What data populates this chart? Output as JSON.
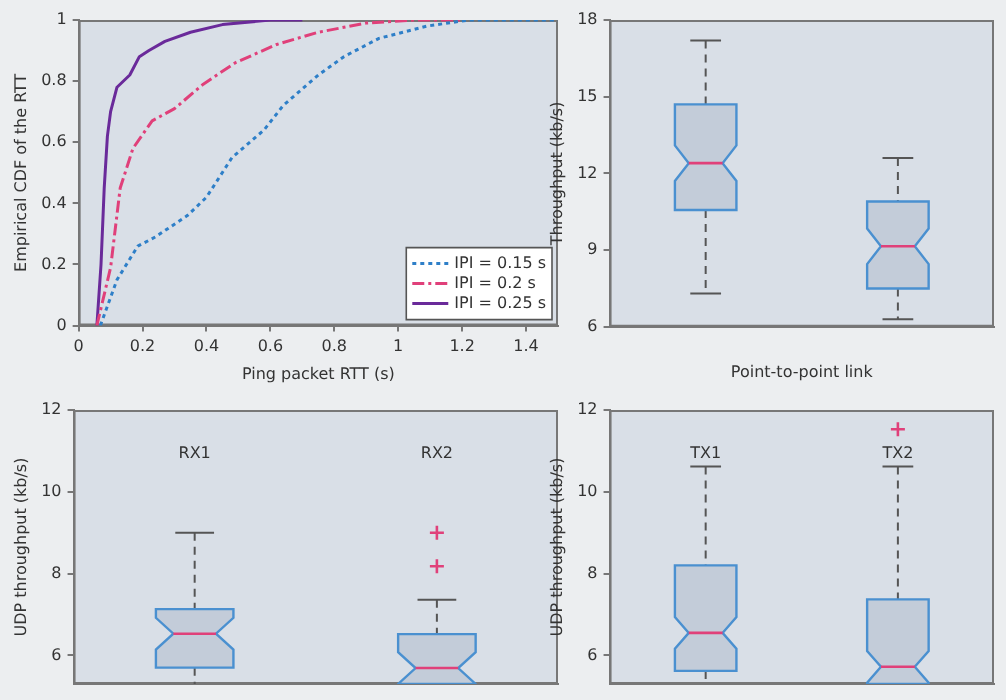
{
  "chart_data": [
    {
      "type": "line",
      "xlabel": "Ping packet RTT (s)",
      "ylabel": "Empirical CDF of the RTT",
      "xlim": [
        0,
        1.5
      ],
      "xticks": [
        0,
        0.2,
        0.4,
        0.6,
        0.8,
        1,
        1.2,
        1.4
      ],
      "ylim": [
        0,
        1
      ],
      "yticks": [
        0,
        0.2,
        0.4,
        0.6,
        0.8,
        1
      ],
      "grid": false,
      "legend": "bottom right",
      "marker": "none",
      "series": [
        {
          "name": "IPI = 0.15 s",
          "color": "#2e7fc8",
          "line_style": "dotted",
          "x": [
            0.068,
            0.12,
            0.185,
            0.24,
            0.34,
            0.4,
            0.48,
            0.58,
            0.64,
            0.75,
            0.83,
            0.94,
            1.09,
            1.22,
            1.5
          ],
          "values": [
            0,
            0.15,
            0.26,
            0.29,
            0.36,
            0.42,
            0.55,
            0.64,
            0.72,
            0.82,
            0.88,
            0.94,
            0.98,
            1,
            1
          ]
        },
        {
          "name": "IPI = 0.2 s",
          "color": "#e0407a",
          "line_style": "dashed",
          "x": [
            0.057,
            0.1,
            0.13,
            0.17,
            0.23,
            0.3,
            0.39,
            0.49,
            0.62,
            0.75,
            0.9,
            1.05,
            1.2
          ],
          "values": [
            0,
            0.19,
            0.45,
            0.58,
            0.67,
            0.71,
            0.79,
            0.86,
            0.92,
            0.96,
            0.99,
            1,
            1
          ]
        },
        {
          "name": "IPI = 0.25 s",
          "color": "#6a2a9a",
          "line_style": "solid",
          "x": [
            0.057,
            0.07,
            0.08,
            0.09,
            0.1,
            0.12,
            0.16,
            0.19,
            0.22,
            0.27,
            0.35,
            0.45,
            0.6,
            0.7
          ],
          "values": [
            0,
            0.2,
            0.45,
            0.62,
            0.7,
            0.78,
            0.82,
            0.88,
            0.9,
            0.93,
            0.96,
            0.985,
            1,
            1
          ]
        }
      ]
    },
    {
      "type": "box",
      "xlabel": "Point-to-point link",
      "ylabel": "Throughput (kb/s)",
      "categories": [
        null,
        null
      ],
      "ylim": [
        6,
        18
      ],
      "yticks": [
        6,
        9,
        12,
        15,
        18
      ],
      "grid": false,
      "tick_labels": "y",
      "color": "#4a90d0",
      "boxes": [
        {
          "low": 7.3,
          "q1": 10.57,
          "median": 12.4,
          "q3": 14.7,
          "high": 17.2
        },
        {
          "low": 6.3,
          "q1": 7.5,
          "median": 9.15,
          "q3": 10.9,
          "high": 12.6
        }
      ]
    },
    {
      "type": "box",
      "ylabel": "UDP throughput (kb/s)",
      "categories": [
        "RX1",
        "RX2"
      ],
      "ylim": [
        5.3,
        12
      ],
      "yticks": [
        6,
        8,
        10,
        12
      ],
      "grid": false,
      "tick_labels": "y",
      "color": "#4a90d0",
      "boxes": [
        {
          "low": null,
          "q1": 5.7,
          "median": 6.53,
          "q3": 7.13,
          "high": 9.0
        },
        {
          "low": null,
          "q1": 5.3,
          "median": 5.69,
          "q3": 6.52,
          "high": 7.36,
          "outliers": [
            8.18,
            9.0
          ]
        }
      ]
    },
    {
      "type": "box",
      "ylabel": "UDP throughput (kb/s)",
      "categories": [
        "TX1",
        "TX2"
      ],
      "ylim": [
        5.3,
        12
      ],
      "yticks": [
        6,
        8,
        10,
        12
      ],
      "grid": false,
      "tick_labels": "y",
      "color": "#4a90d0",
      "boxes": [
        {
          "low": null,
          "q1": 5.62,
          "median": 6.55,
          "q3": 8.2,
          "high": 10.62
        },
        {
          "low": null,
          "q1": 5.3,
          "median": 5.72,
          "q3": 7.37,
          "high": 10.62,
          "outliers": [
            11.53
          ]
        }
      ]
    }
  ]
}
